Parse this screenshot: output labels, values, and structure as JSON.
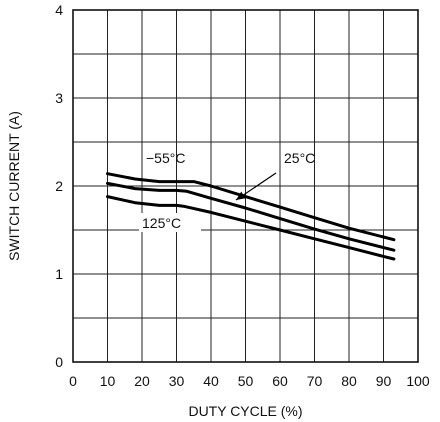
{
  "chart_data": {
    "type": "line",
    "title": "",
    "xlabel": "DUTY CYCLE (%)",
    "ylabel": "SWITCH CURRENT (A)",
    "xlim": [
      0,
      100
    ],
    "ylim": [
      0,
      4
    ],
    "grid": true,
    "x_ticks": [
      "0",
      "10",
      "20",
      "30",
      "40",
      "50",
      "60",
      "70",
      "80",
      "90",
      "100"
    ],
    "y_ticks": [
      "0",
      "1",
      "2",
      "3",
      "4"
    ],
    "series": [
      {
        "name": "−55°C",
        "points": [
          [
            10,
            2.14
          ],
          [
            18,
            2.08
          ],
          [
            25,
            2.05
          ],
          [
            30,
            2.05
          ],
          [
            35,
            2.05
          ],
          [
            40,
            2.0
          ],
          [
            50,
            1.88
          ],
          [
            60,
            1.76
          ],
          [
            70,
            1.64
          ],
          [
            80,
            1.52
          ],
          [
            90,
            1.42
          ],
          [
            93,
            1.39
          ]
        ]
      },
      {
        "name": "25°C",
        "points": [
          [
            10,
            2.03
          ],
          [
            18,
            1.97
          ],
          [
            25,
            1.95
          ],
          [
            30,
            1.95
          ],
          [
            33,
            1.94
          ],
          [
            40,
            1.86
          ],
          [
            50,
            1.75
          ],
          [
            60,
            1.63
          ],
          [
            70,
            1.51
          ],
          [
            80,
            1.4
          ],
          [
            90,
            1.3
          ],
          [
            93,
            1.27
          ]
        ]
      },
      {
        "name": "125°C",
        "points": [
          [
            10,
            1.88
          ],
          [
            18,
            1.81
          ],
          [
            25,
            1.78
          ],
          [
            30,
            1.78
          ],
          [
            32,
            1.77
          ],
          [
            40,
            1.7
          ],
          [
            50,
            1.6
          ],
          [
            60,
            1.5
          ],
          [
            70,
            1.4
          ],
          [
            80,
            1.3
          ],
          [
            90,
            1.2
          ],
          [
            93,
            1.17
          ]
        ]
      }
    ],
    "annotations": [
      {
        "text": "−55°C",
        "series": "−55°C"
      },
      {
        "text": "25°C",
        "series": "25°C",
        "arrow": true
      },
      {
        "text": "125°C",
        "series": "125°C"
      }
    ]
  }
}
